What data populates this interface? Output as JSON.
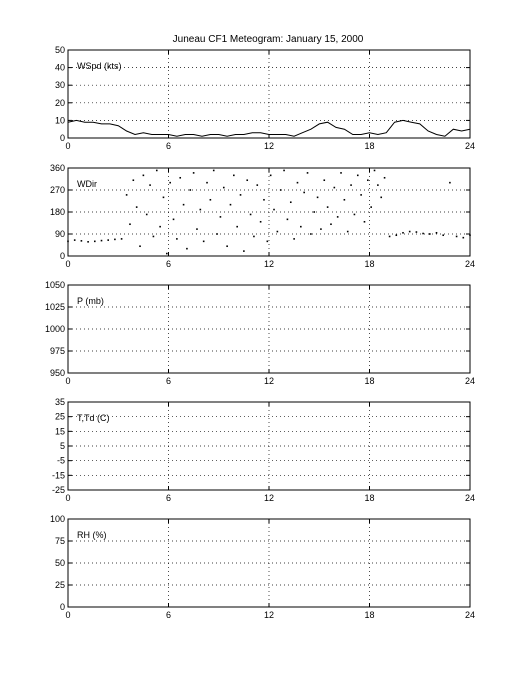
{
  "title": "Juneau CF1 Meteogram:    January 15, 2000",
  "chart_data": [
    {
      "type": "line",
      "label": "WSpd (kts)",
      "xlim": [
        0,
        24
      ],
      "ylim": [
        0,
        50
      ],
      "xticks": [
        0,
        6,
        12,
        18,
        24
      ],
      "yticks": [
        0,
        10,
        20,
        30,
        40,
        50
      ],
      "grid": true,
      "x": [
        0.0,
        0.5,
        1.0,
        1.5,
        2.0,
        2.5,
        3.0,
        3.5,
        4.0,
        4.5,
        5.0,
        5.5,
        6.0,
        6.5,
        7.0,
        7.5,
        8.0,
        8.5,
        9.0,
        9.5,
        10.0,
        10.5,
        11.0,
        11.5,
        12.0,
        12.5,
        13.0,
        13.5,
        14.0,
        14.5,
        15.0,
        15.5,
        16.0,
        16.5,
        17.0,
        17.5,
        18.0,
        18.5,
        19.0,
        19.5,
        20.0,
        20.5,
        21.0,
        21.5,
        22.0,
        22.5,
        23.0,
        23.5,
        24.0
      ],
      "values": [
        9,
        10,
        9,
        9,
        8,
        8,
        7,
        4,
        2,
        3,
        2,
        2,
        2,
        1,
        2,
        2,
        1,
        2,
        2,
        1,
        2,
        2,
        3,
        3,
        2,
        2,
        2,
        1,
        3,
        5,
        8,
        9,
        6,
        5,
        2,
        2,
        3,
        2,
        3,
        9,
        10,
        9,
        8,
        4,
        2,
        1,
        5,
        4,
        5
      ]
    },
    {
      "type": "scatter",
      "label": "WDir",
      "xlim": [
        0,
        24
      ],
      "ylim": [
        0,
        360
      ],
      "xticks": [
        0,
        6,
        12,
        18,
        24
      ],
      "yticks": [
        0,
        90,
        180,
        270,
        360
      ],
      "grid": true,
      "x": [
        0.0,
        0.4,
        0.8,
        1.2,
        1.6,
        2.0,
        2.4,
        2.8,
        3.2,
        3.5,
        3.7,
        3.9,
        4.1,
        4.3,
        4.5,
        4.7,
        4.9,
        5.1,
        5.3,
        5.5,
        5.7,
        5.9,
        6.1,
        6.3,
        6.5,
        6.7,
        6.9,
        7.1,
        7.3,
        7.5,
        7.7,
        7.9,
        8.1,
        8.3,
        8.5,
        8.7,
        8.9,
        9.1,
        9.3,
        9.5,
        9.7,
        9.9,
        10.1,
        10.3,
        10.5,
        10.7,
        10.9,
        11.1,
        11.3,
        11.5,
        11.7,
        11.9,
        12.1,
        12.3,
        12.5,
        12.7,
        12.9,
        13.1,
        13.3,
        13.5,
        13.7,
        13.9,
        14.1,
        14.3,
        14.5,
        14.7,
        14.9,
        15.1,
        15.3,
        15.5,
        15.7,
        15.9,
        16.1,
        16.3,
        16.5,
        16.7,
        16.9,
        17.1,
        17.3,
        17.5,
        17.7,
        17.9,
        18.1,
        18.3,
        18.5,
        18.7,
        18.9,
        19.2,
        19.6,
        20.0,
        20.4,
        20.8,
        21.2,
        21.6,
        22.0,
        22.4,
        22.8,
        23.2,
        23.6,
        24.0
      ],
      "values": [
        60,
        65,
        62,
        58,
        60,
        63,
        65,
        68,
        70,
        250,
        130,
        310,
        200,
        40,
        330,
        170,
        290,
        80,
        350,
        120,
        240,
        10,
        300,
        150,
        70,
        320,
        210,
        30,
        270,
        340,
        110,
        190,
        60,
        300,
        230,
        350,
        90,
        160,
        280,
        40,
        210,
        330,
        120,
        250,
        20,
        310,
        170,
        80,
        290,
        140,
        230,
        60,
        330,
        190,
        100,
        270,
        350,
        150,
        220,
        70,
        300,
        120,
        260,
        340,
        90,
        180,
        240,
        110,
        310,
        200,
        130,
        280,
        160,
        340,
        230,
        100,
        290,
        170,
        330,
        250,
        140,
        310,
        200,
        350,
        290,
        240,
        320,
        80,
        85,
        95,
        100,
        98,
        92,
        90,
        95,
        85,
        300,
        80,
        75,
        85
      ]
    },
    {
      "type": "line",
      "label": "P (mb)",
      "xlim": [
        0,
        24
      ],
      "ylim": [
        950,
        1050
      ],
      "xticks": [
        0,
        6,
        12,
        18,
        24
      ],
      "yticks": [
        950,
        975,
        1000,
        1025,
        1050
      ],
      "grid": true,
      "x": [],
      "values": []
    },
    {
      "type": "line",
      "label": "T,Td (C)",
      "xlim": [
        0,
        24
      ],
      "ylim": [
        -25,
        35
      ],
      "xticks": [
        0,
        6,
        12,
        18,
        24
      ],
      "yticks": [
        -25,
        -15,
        -5,
        5,
        15,
        25,
        35
      ],
      "grid": true,
      "x": [],
      "values": []
    },
    {
      "type": "line",
      "label": "RH (%)",
      "xlim": [
        0,
        24
      ],
      "ylim": [
        0,
        100
      ],
      "xticks": [
        0,
        6,
        12,
        18,
        24
      ],
      "yticks": [
        0,
        25,
        50,
        75,
        100
      ],
      "grid": true,
      "x": [],
      "values": []
    }
  ]
}
